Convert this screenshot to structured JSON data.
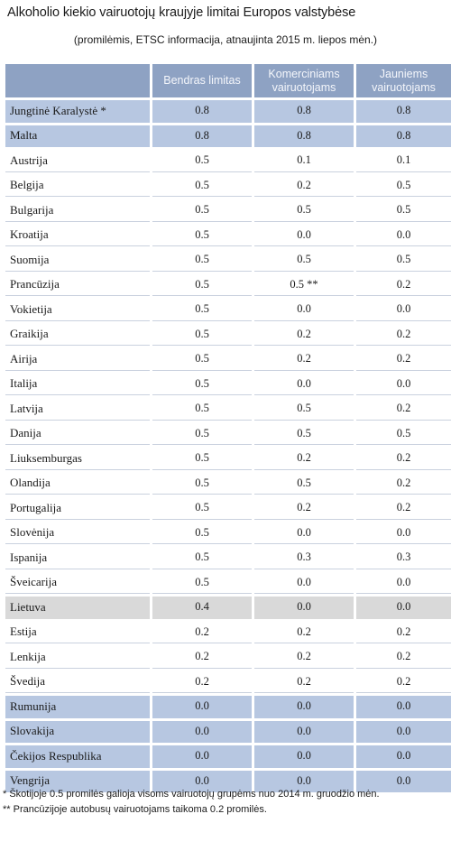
{
  "title": "Alkoholio kiekio vairuotojų kraujyje limitai Europos valstybėse",
  "subtitle": "(promilėmis, ETSC informacija, atnaujinta 2015 m. liepos mėn.)",
  "headers": {
    "general": "Bendras limitas",
    "commercial": "Komerciniams vairuotojams",
    "young": "Jauniems vairuotojams"
  },
  "colors": {
    "header_bg": "#8ea2c3",
    "highlight_blue": "#b7c7e1",
    "highlight_gray": "#d9d9d9"
  },
  "rows": [
    {
      "country": "Jungtinė Karalystė *",
      "general": "0.8",
      "commercial": "0.8",
      "young": "0.8",
      "highlight": "blue"
    },
    {
      "country": "Malta",
      "general": "0.8",
      "commercial": "0.8",
      "young": "0.8",
      "highlight": "blue"
    },
    {
      "country": "Austrija",
      "general": "0.5",
      "commercial": "0.1",
      "young": "0.1",
      "highlight": "none"
    },
    {
      "country": "Belgija",
      "general": "0.5",
      "commercial": "0.2",
      "young": "0.5",
      "highlight": "none"
    },
    {
      "country": "Bulgarija",
      "general": "0.5",
      "commercial": "0.5",
      "young": "0.5",
      "highlight": "none"
    },
    {
      "country": "Kroatija",
      "general": "0.5",
      "commercial": "0.0",
      "young": "0.0",
      "highlight": "none"
    },
    {
      "country": "Suomija",
      "general": "0.5",
      "commercial": "0.5",
      "young": "0.5",
      "highlight": "none"
    },
    {
      "country": "Prancūzija",
      "general": "0.5",
      "commercial": "0.5 **",
      "young": "0.2",
      "highlight": "none"
    },
    {
      "country": "Vokietija",
      "general": "0.5",
      "commercial": "0.0",
      "young": "0.0",
      "highlight": "none"
    },
    {
      "country": "Graikija",
      "general": "0.5",
      "commercial": "0.2",
      "young": "0.2",
      "highlight": "none"
    },
    {
      "country": "Airija",
      "general": "0.5",
      "commercial": "0.2",
      "young": "0.2",
      "highlight": "none"
    },
    {
      "country": "Italija",
      "general": "0.5",
      "commercial": "0.0",
      "young": "0.0",
      "highlight": "none"
    },
    {
      "country": "Latvija",
      "general": "0.5",
      "commercial": "0.5",
      "young": "0.2",
      "highlight": "none"
    },
    {
      "country": "Danija",
      "general": "0.5",
      "commercial": "0.5",
      "young": "0.5",
      "highlight": "none"
    },
    {
      "country": "Liuksemburgas",
      "general": "0.5",
      "commercial": "0.2",
      "young": "0.2",
      "highlight": "none"
    },
    {
      "country": "Olandija",
      "general": "0.5",
      "commercial": "0.5",
      "young": "0.2",
      "highlight": "none"
    },
    {
      "country": "Portugalija",
      "general": "0.5",
      "commercial": "0.2",
      "young": "0.2",
      "highlight": "none"
    },
    {
      "country": "Slovėnija",
      "general": "0.5",
      "commercial": "0.0",
      "young": "0.0",
      "highlight": "none"
    },
    {
      "country": "Ispanija",
      "general": "0.5",
      "commercial": "0.3",
      "young": "0.3",
      "highlight": "none"
    },
    {
      "country": "Šveicarija",
      "general": "0.5",
      "commercial": "0.0",
      "young": "0.0",
      "highlight": "none"
    },
    {
      "country": "Lietuva",
      "general": "0.4",
      "commercial": "0.0",
      "young": "0.0",
      "highlight": "gray"
    },
    {
      "country": "Estija",
      "general": "0.2",
      "commercial": "0.2",
      "young": "0.2",
      "highlight": "none"
    },
    {
      "country": "Lenkija",
      "general": "0.2",
      "commercial": "0.2",
      "young": "0.2",
      "highlight": "none"
    },
    {
      "country": "Švedija",
      "general": "0.2",
      "commercial": "0.2",
      "young": "0.2",
      "highlight": "none"
    },
    {
      "country": "Rumunija",
      "general": "0.0",
      "commercial": "0.0",
      "young": "0.0",
      "highlight": "blue"
    },
    {
      "country": "Slovakija",
      "general": "0.0",
      "commercial": "0.0",
      "young": "0.0",
      "highlight": "blue"
    },
    {
      "country": "Čekijos Respublika",
      "general": "0.0",
      "commercial": "0.0",
      "young": "0.0",
      "highlight": "blue"
    },
    {
      "country": "Vengrija",
      "general": "0.0",
      "commercial": "0.0",
      "young": "0.0",
      "highlight": "blue"
    }
  ],
  "footnotes": [
    "* Škotijoje 0.5 promilės galioja visoms vairuotojų grupėms nuo 2014 m. gruodžio mėn.",
    "** Prancūzijoje autobusų vairuotojams taikoma 0.2 promilės."
  ]
}
